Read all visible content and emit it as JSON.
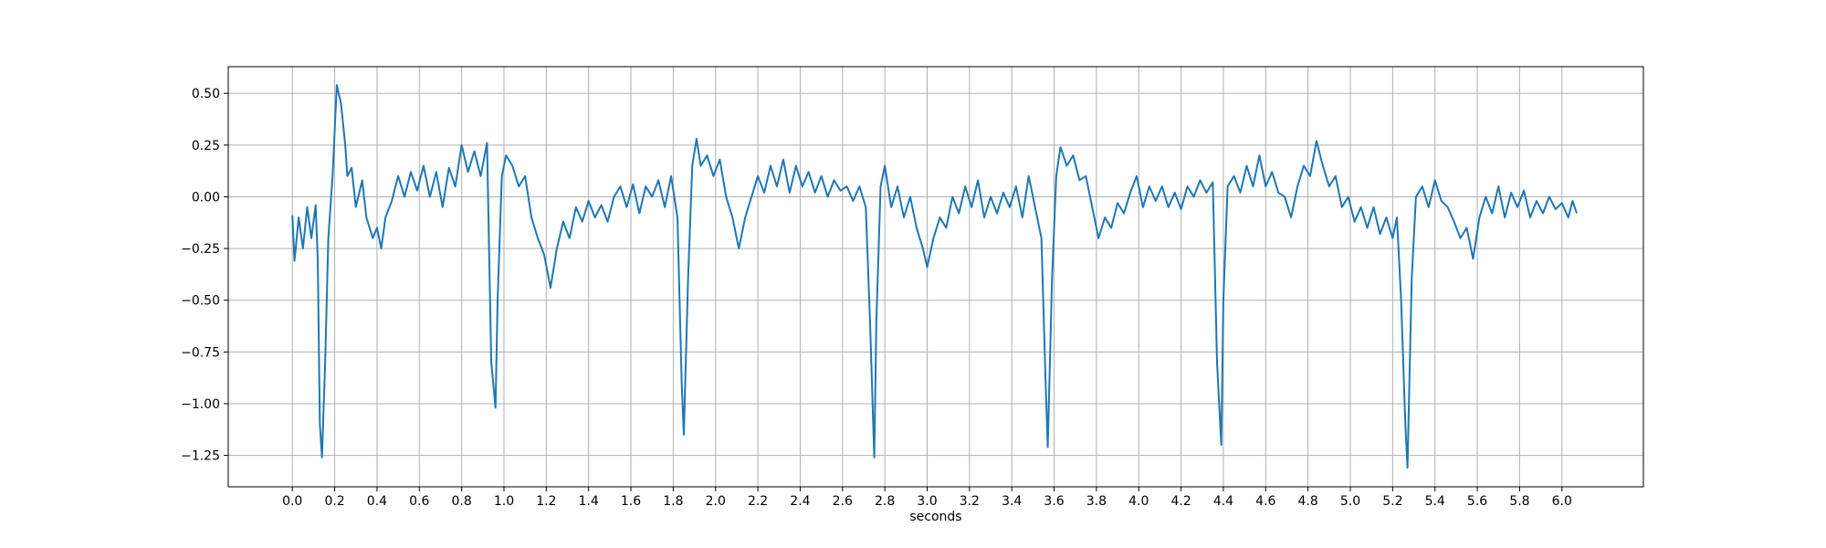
{
  "chart_data": {
    "type": "line",
    "xlabel": "seconds",
    "color": "#1f77b4",
    "grid": true,
    "xlim": [
      -0.303,
      6.385
    ],
    "ylim": [
      -1.402,
      0.629
    ],
    "xticks": [
      {
        "value": 0,
        "label": "0.0"
      },
      0.2,
      0.4,
      0.6,
      0.8,
      {
        "value": 1,
        "label": "1.0"
      },
      1.2,
      1.4,
      1.6,
      1.8,
      {
        "value": 2,
        "label": "2.0"
      },
      2.2,
      2.4,
      2.6,
      2.8,
      {
        "value": 3,
        "label": "3.0"
      },
      3.2,
      3.4,
      3.6,
      3.8,
      {
        "value": 4,
        "label": "4.0"
      },
      4.2,
      4.4,
      4.6,
      4.8,
      {
        "value": 5,
        "label": "5.0"
      },
      5.2,
      5.4,
      5.6,
      5.8,
      {
        "value": 6,
        "label": "6.0"
      }
    ],
    "yticks": [
      {
        "value": 0.5,
        "label": "0.50"
      },
      {
        "value": 0.25,
        "label": "0.25"
      },
      {
        "value": 0,
        "label": "0.00"
      },
      {
        "value": -0.25,
        "label": "−0.25"
      },
      {
        "value": -0.5,
        "label": "−0.50"
      },
      {
        "value": -0.75,
        "label": "−0.75"
      },
      {
        "value": -1,
        "label": "−1.00"
      },
      {
        "value": -1.25,
        "label": "−1.25"
      }
    ],
    "x": [
      0.0,
      0.01,
      0.03,
      0.05,
      0.07,
      0.09,
      0.11,
      0.12,
      0.13,
      0.14,
      0.155,
      0.17,
      0.19,
      0.21,
      0.23,
      0.25,
      0.26,
      0.28,
      0.3,
      0.33,
      0.35,
      0.38,
      0.4,
      0.42,
      0.44,
      0.47,
      0.5,
      0.53,
      0.56,
      0.59,
      0.62,
      0.65,
      0.68,
      0.71,
      0.74,
      0.77,
      0.8,
      0.83,
      0.86,
      0.89,
      0.92,
      0.94,
      0.96,
      0.97,
      0.99,
      1.01,
      1.04,
      1.07,
      1.1,
      1.13,
      1.16,
      1.19,
      1.22,
      1.25,
      1.28,
      1.31,
      1.34,
      1.37,
      1.4,
      1.43,
      1.46,
      1.49,
      1.52,
      1.55,
      1.58,
      1.61,
      1.64,
      1.67,
      1.7,
      1.73,
      1.76,
      1.79,
      1.82,
      1.84,
      1.85,
      1.87,
      1.89,
      1.91,
      1.93,
      1.96,
      1.99,
      2.02,
      2.05,
      2.08,
      2.11,
      2.14,
      2.17,
      2.2,
      2.23,
      2.26,
      2.29,
      2.32,
      2.35,
      2.38,
      2.41,
      2.44,
      2.47,
      2.5,
      2.53,
      2.56,
      2.59,
      2.62,
      2.65,
      2.68,
      2.71,
      2.73,
      2.75,
      2.76,
      2.78,
      2.8,
      2.83,
      2.86,
      2.89,
      2.92,
      2.95,
      2.98,
      3.0,
      3.03,
      3.06,
      3.09,
      3.12,
      3.15,
      3.18,
      3.21,
      3.24,
      3.27,
      3.3,
      3.33,
      3.36,
      3.39,
      3.42,
      3.45,
      3.48,
      3.51,
      3.54,
      3.56,
      3.57,
      3.59,
      3.61,
      3.63,
      3.66,
      3.69,
      3.72,
      3.75,
      3.78,
      3.81,
      3.84,
      3.87,
      3.9,
      3.93,
      3.96,
      3.99,
      4.02,
      4.05,
      4.08,
      4.11,
      4.14,
      4.17,
      4.2,
      4.23,
      4.26,
      4.29,
      4.32,
      4.35,
      4.37,
      4.39,
      4.4,
      4.42,
      4.45,
      4.48,
      4.51,
      4.54,
      4.57,
      4.6,
      4.63,
      4.66,
      4.69,
      4.72,
      4.75,
      4.78,
      4.81,
      4.84,
      4.87,
      4.9,
      4.93,
      4.96,
      4.99,
      5.02,
      5.05,
      5.08,
      5.11,
      5.14,
      5.17,
      5.2,
      5.22,
      5.24,
      5.26,
      5.27,
      5.29,
      5.31,
      5.34,
      5.37,
      5.4,
      5.43,
      5.46,
      5.49,
      5.52,
      5.55,
      5.58,
      5.61,
      5.64,
      5.67,
      5.7,
      5.73,
      5.76,
      5.79,
      5.82,
      5.85,
      5.88,
      5.91,
      5.94,
      5.97,
      6.0,
      6.03,
      6.05,
      6.07
    ],
    "values": [
      -0.09,
      -0.31,
      -0.1,
      -0.25,
      -0.05,
      -0.2,
      -0.04,
      -0.3,
      -1.1,
      -1.26,
      -0.8,
      -0.2,
      0.1,
      0.54,
      0.45,
      0.25,
      0.1,
      0.14,
      -0.05,
      0.08,
      -0.1,
      -0.2,
      -0.15,
      -0.25,
      -0.1,
      -0.02,
      0.1,
      0.0,
      0.12,
      0.03,
      0.15,
      0.0,
      0.12,
      -0.05,
      0.14,
      0.05,
      0.25,
      0.12,
      0.22,
      0.1,
      0.26,
      -0.8,
      -1.02,
      -0.5,
      0.1,
      0.2,
      0.15,
      0.05,
      0.1,
      -0.1,
      -0.2,
      -0.28,
      -0.44,
      -0.25,
      -0.12,
      -0.2,
      -0.05,
      -0.12,
      -0.02,
      -0.1,
      -0.04,
      -0.12,
      0.0,
      0.05,
      -0.05,
      0.06,
      -0.08,
      0.05,
      0.0,
      0.08,
      -0.05,
      0.1,
      -0.1,
      -0.9,
      -1.15,
      -0.4,
      0.15,
      0.28,
      0.15,
      0.2,
      0.1,
      0.18,
      0.0,
      -0.1,
      -0.25,
      -0.1,
      0.0,
      0.1,
      0.02,
      0.15,
      0.05,
      0.18,
      0.02,
      0.15,
      0.05,
      0.12,
      0.02,
      0.1,
      0.0,
      0.08,
      0.03,
      0.05,
      -0.02,
      0.05,
      -0.05,
      -0.6,
      -1.26,
      -0.6,
      0.05,
      0.15,
      -0.05,
      0.05,
      -0.1,
      0.0,
      -0.15,
      -0.25,
      -0.34,
      -0.2,
      -0.1,
      -0.15,
      0.0,
      -0.08,
      0.05,
      -0.05,
      0.08,
      -0.1,
      0.0,
      -0.08,
      0.02,
      -0.05,
      0.05,
      -0.1,
      0.1,
      -0.05,
      -0.2,
      -0.9,
      -1.21,
      -0.4,
      0.1,
      0.24,
      0.15,
      0.2,
      0.08,
      0.1,
      -0.05,
      -0.2,
      -0.1,
      -0.15,
      -0.03,
      -0.08,
      0.02,
      0.1,
      -0.05,
      0.05,
      -0.02,
      0.05,
      -0.05,
      0.02,
      -0.06,
      0.05,
      0.0,
      0.08,
      0.02,
      0.07,
      -0.8,
      -1.2,
      -0.5,
      0.05,
      0.1,
      0.02,
      0.15,
      0.05,
      0.2,
      0.05,
      0.12,
      0.02,
      0.0,
      -0.1,
      0.05,
      0.15,
      0.1,
      0.27,
      0.15,
      0.05,
      0.1,
      -0.05,
      0.0,
      -0.12,
      -0.05,
      -0.15,
      -0.05,
      -0.18,
      -0.1,
      -0.2,
      -0.1,
      -0.5,
      -1.1,
      -1.31,
      -0.4,
      0.0,
      0.05,
      -0.05,
      0.08,
      -0.02,
      -0.05,
      -0.12,
      -0.2,
      -0.15,
      -0.3,
      -0.1,
      0.0,
      -0.08,
      0.05,
      -0.1,
      0.02,
      -0.05,
      0.03,
      -0.1,
      -0.02,
      -0.08,
      0.0,
      -0.06,
      -0.03,
      -0.1,
      -0.02,
      -0.08
    ]
  }
}
